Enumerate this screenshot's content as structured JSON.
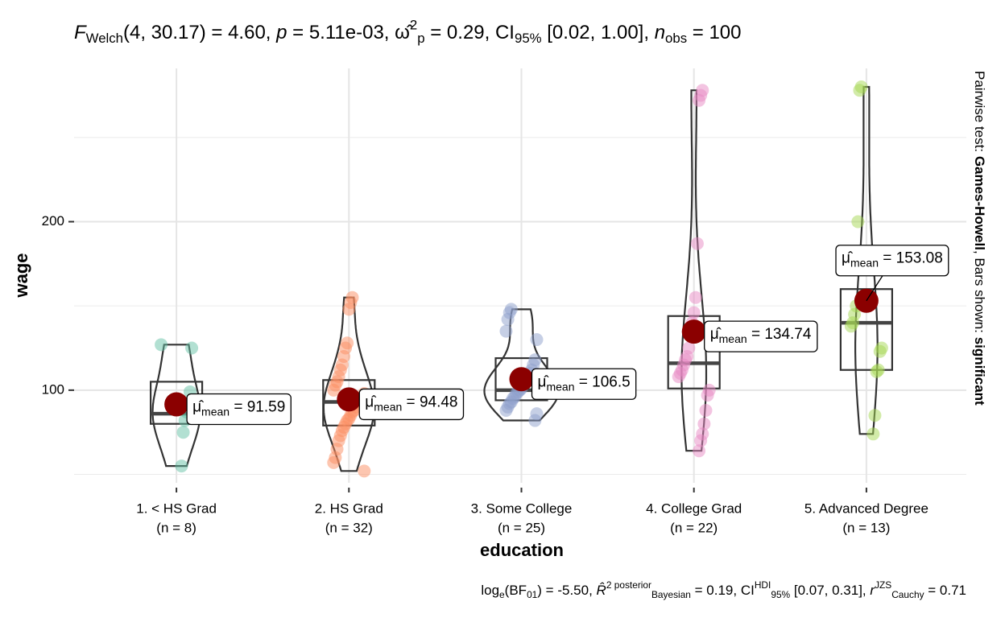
{
  "chart_data": {
    "type": "violin",
    "title": [
      {
        "text": "F",
        "style": "italic"
      },
      {
        "text": "Welch",
        "style": "sub"
      },
      {
        "text": "(4, 30.17) = 4.60, "
      },
      {
        "text": "p",
        "style": "italic"
      },
      {
        "text": " = 5.11e-03, "
      },
      {
        "text": "ω̂"
      },
      {
        "text": "2",
        "style": "sup"
      },
      {
        "text": "p",
        "style": "sub"
      },
      {
        "text": " = 0.29, CI"
      },
      {
        "text": "95%",
        "style": "sub"
      },
      {
        "text": " [0.02, 1.00], "
      },
      {
        "text": "n",
        "style": "italic"
      },
      {
        "text": "obs",
        "style": "sub"
      },
      {
        "text": " = 100"
      }
    ],
    "caption": [
      {
        "text": "log"
      },
      {
        "text": "e",
        "style": "sub"
      },
      {
        "text": "(BF"
      },
      {
        "text": "01",
        "style": "sub"
      },
      {
        "text": ") = -5.50, "
      },
      {
        "text": "R̂",
        "style": "italic"
      },
      {
        "text": "2 posterior",
        "style": "sup"
      },
      {
        "text": "Bayesian",
        "style": "sub"
      },
      {
        "text": " = 0.19, CI"
      },
      {
        "text": "HDI",
        "style": "sup"
      },
      {
        "text": "95%",
        "style": "sub"
      },
      {
        "text": " [0.07, 0.31], "
      },
      {
        "text": "r",
        "style": "italic"
      },
      {
        "text": "JZS",
        "style": "sup"
      },
      {
        "text": "Cauchy",
        "style": "sub"
      },
      {
        "text": " = 0.71"
      }
    ],
    "side_note": [
      {
        "text": "Pairwise test: "
      },
      {
        "text": "Games-Howell",
        "style": "bold"
      },
      {
        "text": ", Bars shown: "
      },
      {
        "text": "significant",
        "style": "bold"
      }
    ],
    "x_label": "education",
    "y_label": "wage",
    "categories": [
      "1. < HS Grad",
      "2. HS Grad",
      "3. Some College",
      "4. College Grad",
      "5. Advanced Degree"
    ],
    "category_counts": [
      "(n = 8)",
      "(n = 32)",
      "(n = 25)",
      "(n = 22)",
      "(n = 13)"
    ],
    "ylim": [
      45,
      291
    ],
    "yticks": [
      100,
      200
    ],
    "minor_yticks": [
      50,
      150,
      250
    ],
    "grid": true,
    "series": [
      {
        "color": "#66c2a5",
        "q1": 80,
        "median": 86,
        "q3": 105,
        "values": [
          127,
          125,
          99,
          92,
          87,
          82,
          75,
          55
        ]
      },
      {
        "color": "#fc8d62",
        "q1": 79,
        "median": 93,
        "q3": 106,
        "values": [
          155,
          152,
          148,
          128,
          125,
          120,
          115,
          112,
          108,
          105,
          103,
          100,
          98,
          96,
          95,
          93,
          92,
          90,
          88,
          87,
          85,
          83,
          82,
          80,
          78,
          76,
          73,
          70,
          65,
          60,
          57,
          52
        ]
      },
      {
        "color": "#8da0cb",
        "q1": 94,
        "median": 100,
        "q3": 119,
        "values": [
          148,
          146,
          142,
          135,
          130,
          118,
          115,
          112,
          110,
          108,
          106,
          104,
          103,
          101,
          100,
          99,
          98,
          96,
          95,
          93,
          92,
          90,
          88,
          86,
          82
        ]
      },
      {
        "color": "#e78ac3",
        "q1": 101,
        "median": 116,
        "q3": 144,
        "values": [
          278,
          275,
          272,
          187,
          155,
          146,
          140,
          132,
          125,
          120,
          118,
          115,
          112,
          110,
          108,
          100,
          97,
          88,
          80,
          74,
          70,
          64
        ]
      },
      {
        "color": "#a6d854",
        "q1": 112,
        "median": 140,
        "q3": 160,
        "values": [
          280,
          278,
          200,
          150,
          145,
          140,
          138,
          125,
          123,
          112,
          111,
          85,
          74
        ]
      }
    ],
    "means": {
      "color": "#8b0000",
      "values": [
        91.59,
        94.48,
        106.5,
        134.74,
        153.08
      ]
    },
    "mean_label": {
      "symbol": "μ̂",
      "subscript": "mean",
      "operator": " = "
    }
  }
}
